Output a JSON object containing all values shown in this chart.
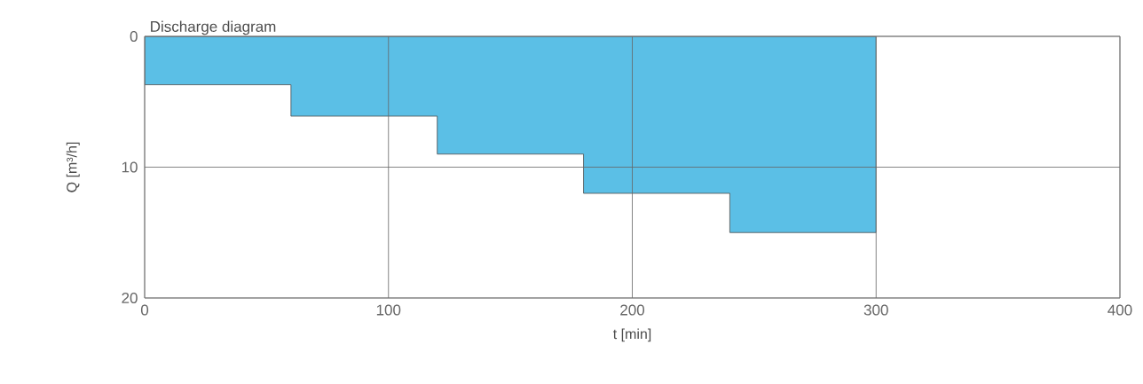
{
  "chart_data": {
    "type": "area",
    "title": "Discharge diagram",
    "xlabel": "t [min]",
    "ylabel": "Q [m³/h]",
    "x": [
      0,
      60,
      60,
      120,
      120,
      180,
      180,
      240,
      240,
      300
    ],
    "series": [
      {
        "color": "#5bbfe6",
        "values": [
          3.7,
          3.7,
          6.1,
          6.1,
          9,
          9,
          12,
          12,
          15,
          15
        ]
      }
    ],
    "xlim": [
      0,
      400
    ],
    "xticks": [
      0,
      100,
      200,
      300,
      400
    ],
    "ylim": [
      20,
      0
    ],
    "yticks": [
      0,
      10,
      20
    ],
    "grid": true
  }
}
